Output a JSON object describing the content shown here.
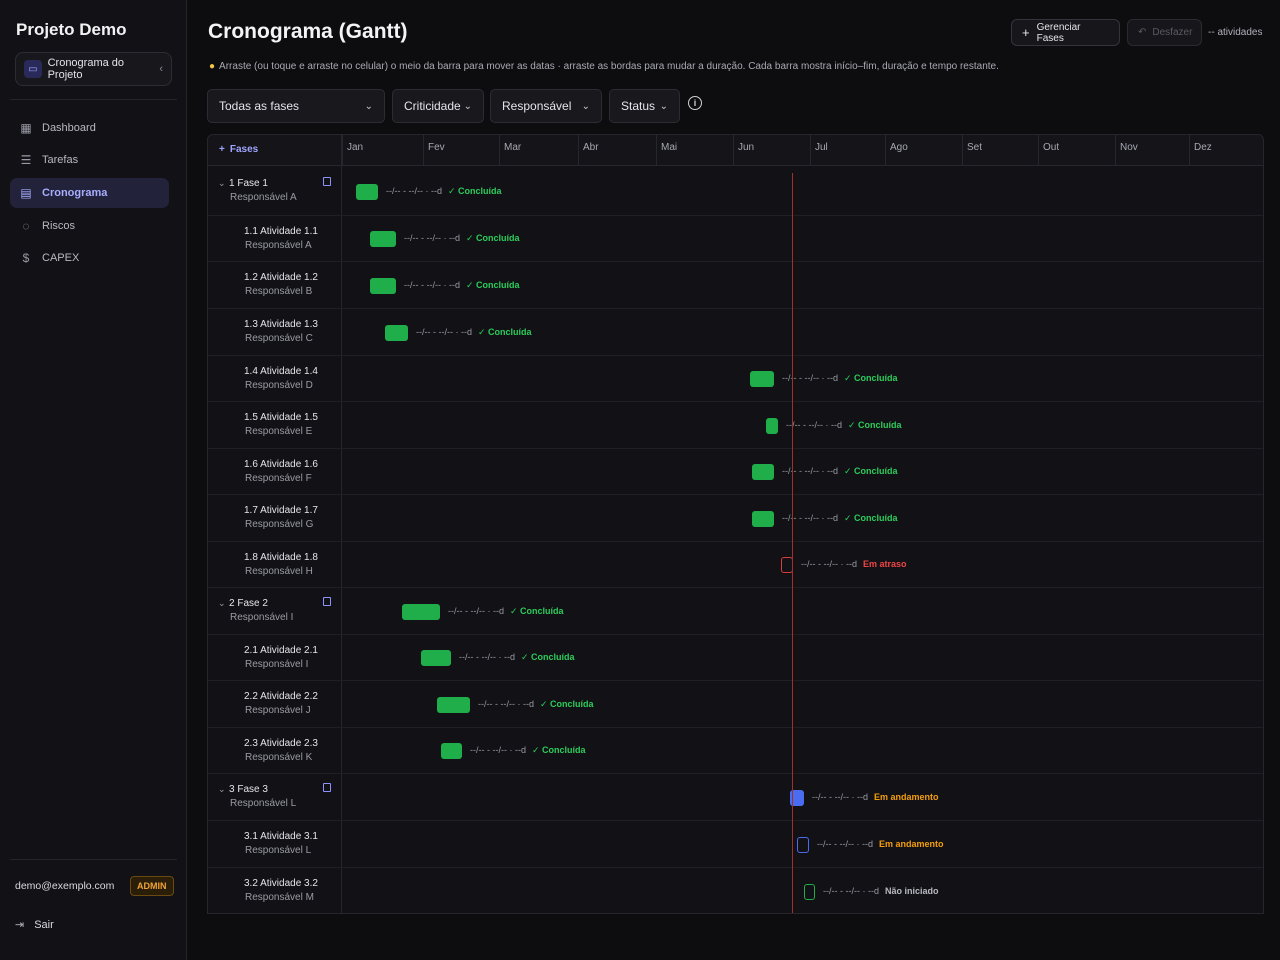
{
  "sidebar": {
    "brand": "Projeto Demo",
    "project_selector": {
      "label": "Cronograma do Projeto",
      "icon": "folder-icon"
    },
    "nav": [
      {
        "label": "Dashboard",
        "icon": "grid-icon",
        "active": false
      },
      {
        "label": "Tarefas",
        "icon": "list-icon",
        "active": false
      },
      {
        "label": "Cronograma",
        "icon": "calendar-icon",
        "active": true
      },
      {
        "label": "Riscos",
        "icon": "shield-icon",
        "active": false
      },
      {
        "label": "CAPEX",
        "icon": "dollar-icon",
        "active": false
      }
    ],
    "user_email": "demo@exemplo.com",
    "role_badge": "ADMIN",
    "logout_label": "Sair"
  },
  "header": {
    "title": "Cronograma (Gantt)",
    "hint": "Arraste (ou toque e arraste no celular) o meio da barra para mover as datas · arraste as bordas para mudar a duração. Cada barra mostra início–fim, duração e tempo restante.",
    "manage_phases_label": "Gerenciar Fases",
    "undo_label": "Desfazer",
    "activities_count": "-- atividades"
  },
  "filters": {
    "phases": "Todas as fases",
    "criticality": "Criticidade",
    "responsible": "Responsável",
    "status": "Status"
  },
  "gantt": {
    "fases_label": "Fases",
    "months": [
      "Jan",
      "Fev",
      "Mar",
      "Abr",
      "Mai",
      "Jun",
      "Jul",
      "Ago",
      "Set",
      "Out",
      "Nov",
      "Dez"
    ],
    "rows": [
      {
        "type": "phase",
        "name": "1 Fase 1",
        "resp": "Responsável A",
        "label": "--/-- - --/-- · --d",
        "status": "✓ Concluída",
        "st": "ok",
        "bar": "green"
      },
      {
        "type": "task",
        "name": "1.1 Atividade 1.1",
        "resp": "Responsável A",
        "label": "--/-- - --/-- · --d",
        "status": "✓ Concluída",
        "st": "ok",
        "bar": "green"
      },
      {
        "type": "task",
        "name": "1.2 Atividade 1.2",
        "resp": "Responsável B",
        "label": "--/-- - --/-- · --d",
        "status": "✓ Concluída",
        "st": "ok",
        "bar": "green"
      },
      {
        "type": "task",
        "name": "1.3 Atividade 1.3",
        "resp": "Responsável C",
        "label": "--/-- - --/-- · --d",
        "status": "✓ Concluída",
        "st": "ok",
        "bar": "green"
      },
      {
        "type": "task",
        "name": "1.4 Atividade 1.4",
        "resp": "Responsável D",
        "label": "--/-- - --/-- · --d",
        "status": "✓ Concluída",
        "st": "ok",
        "bar": "green"
      },
      {
        "type": "task",
        "name": "1.5 Atividade 1.5",
        "resp": "Responsável E",
        "label": "--/-- - --/-- · --d",
        "status": "✓ Concluída",
        "st": "ok",
        "bar": "green"
      },
      {
        "type": "task",
        "name": "1.6 Atividade 1.6",
        "resp": "Responsável F",
        "label": "--/-- - --/-- · --d",
        "status": "✓ Concluída",
        "st": "ok",
        "bar": "green"
      },
      {
        "type": "task",
        "name": "1.7 Atividade 1.7",
        "resp": "Responsável G",
        "label": "--/-- - --/-- · --d",
        "status": "✓ Concluída",
        "st": "ok",
        "bar": "green"
      },
      {
        "type": "task",
        "name": "1.8 Atividade 1.8",
        "resp": "Responsável H",
        "label": "--/-- - --/-- · --d",
        "status": "Em atraso",
        "st": "late",
        "bar": "out-red"
      },
      {
        "type": "phase",
        "name": "2 Fase 2",
        "resp": "Responsável I",
        "label": "--/-- - --/-- · --d",
        "status": "✓ Concluída",
        "st": "ok",
        "bar": "green"
      },
      {
        "type": "task",
        "name": "2.1 Atividade 2.1",
        "resp": "Responsável I",
        "label": "--/-- - --/-- · --d",
        "status": "✓ Concluída",
        "st": "ok",
        "bar": "green"
      },
      {
        "type": "task",
        "name": "2.2 Atividade 2.2",
        "resp": "Responsável J",
        "label": "--/-- - --/-- · --d",
        "status": "✓ Concluída",
        "st": "ok",
        "bar": "green"
      },
      {
        "type": "task",
        "name": "2.3 Atividade 2.3",
        "resp": "Responsável K",
        "label": "--/-- - --/-- · --d",
        "status": "✓ Concluída",
        "st": "ok",
        "bar": "green"
      },
      {
        "type": "phase",
        "name": "3 Fase 3",
        "resp": "Responsável L",
        "label": "--/-- - --/-- · --d",
        "status": "Em andamento",
        "st": "prog",
        "bar": "blue"
      },
      {
        "type": "task",
        "name": "3.1 Atividade 3.1",
        "resp": "Responsável L",
        "label": "--/-- - --/-- · --d",
        "status": "Em andamento",
        "st": "prog",
        "bar": "out-blue"
      },
      {
        "type": "task",
        "name": "3.2 Atividade 3.2",
        "resp": "Responsável M",
        "label": "--/-- - --/-- · --d",
        "status": "Não iniciado",
        "st": "none",
        "bar": "out-green"
      }
    ]
  }
}
